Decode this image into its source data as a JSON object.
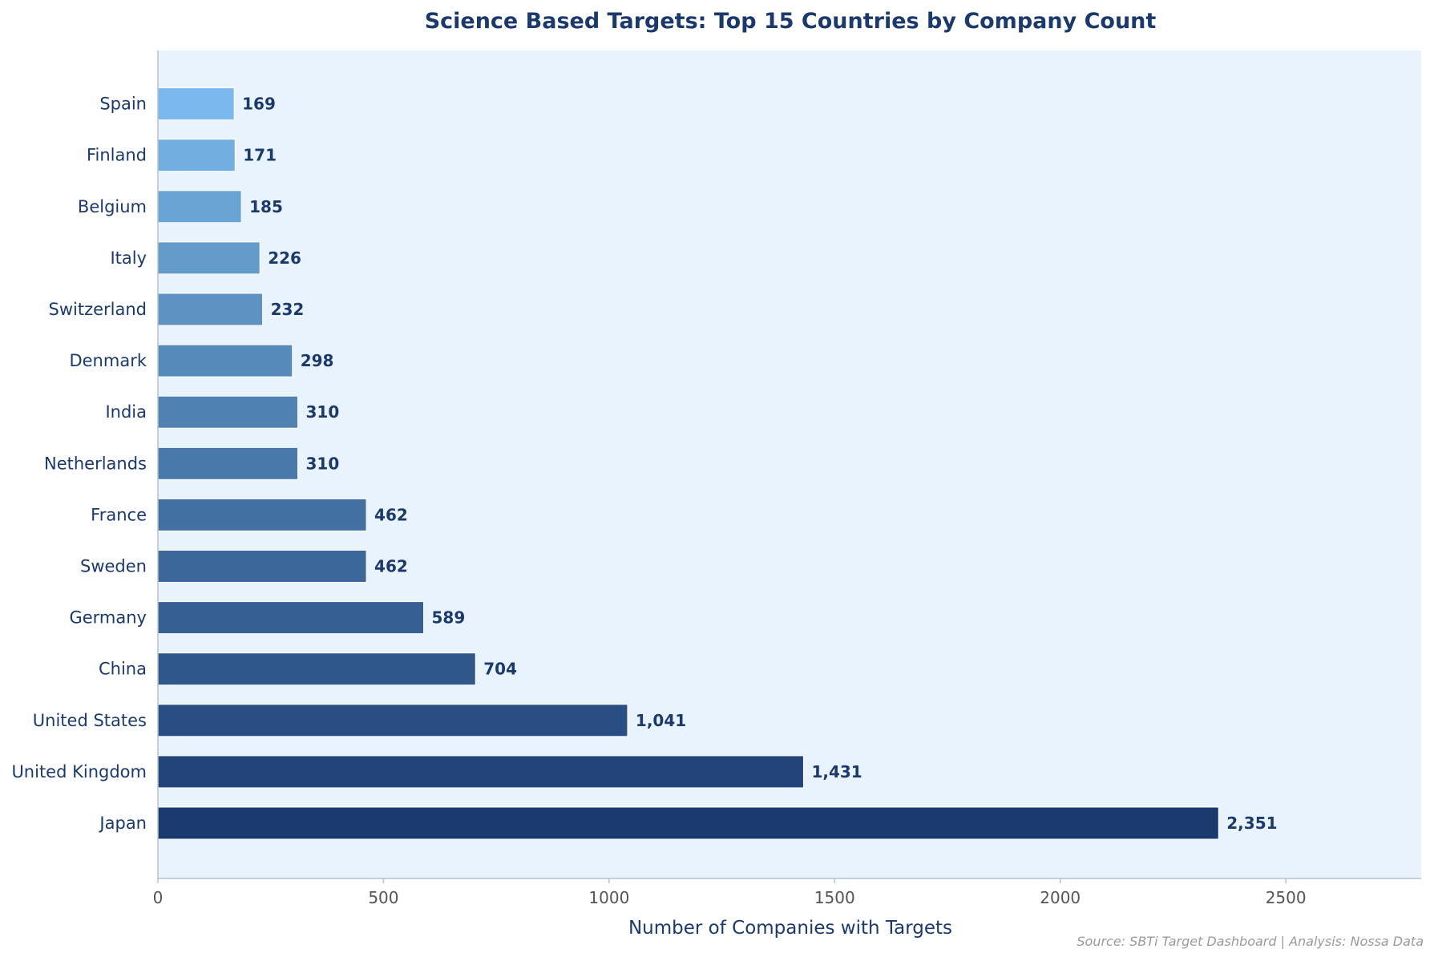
{
  "chart_data": {
    "type": "bar",
    "orientation": "horizontal",
    "title": "Science Based Targets: Top 15 Countries by Company Count",
    "xlabel": "Number of Companies with Targets",
    "ylabel": "",
    "xlim": [
      0,
      2800
    ],
    "xticks": [
      0,
      500,
      1000,
      1500,
      2000,
      2500
    ],
    "grid": false,
    "categories": [
      "Japan",
      "United Kingdom",
      "United States",
      "China",
      "Germany",
      "Sweden",
      "France",
      "Netherlands",
      "India",
      "Denmark",
      "Switzerland",
      "Italy",
      "Belgium",
      "Finland",
      "Spain"
    ],
    "values": [
      2351,
      1431,
      1041,
      704,
      589,
      462,
      462,
      310,
      310,
      298,
      232,
      226,
      185,
      171,
      169
    ],
    "value_labels": [
      "2,351",
      "1,431",
      "1,041",
      "704",
      "589",
      "462",
      "462",
      "310",
      "310",
      "298",
      "232",
      "226",
      "185",
      "171",
      "169"
    ],
    "colors": [
      "#1b3a6e",
      "#22447a",
      "#294e84",
      "#2f578c",
      "#365f93",
      "#3c679b",
      "#4370a3",
      "#4978ab",
      "#5081b3",
      "#568abb",
      "#5d92c3",
      "#649bcb",
      "#6aa4d4",
      "#72aee0",
      "#7bb8ee"
    ],
    "plot_background": "#e9f3fd",
    "source_note": "Source: SBTi Target Dashboard  |  Analysis: Nossa Data"
  }
}
